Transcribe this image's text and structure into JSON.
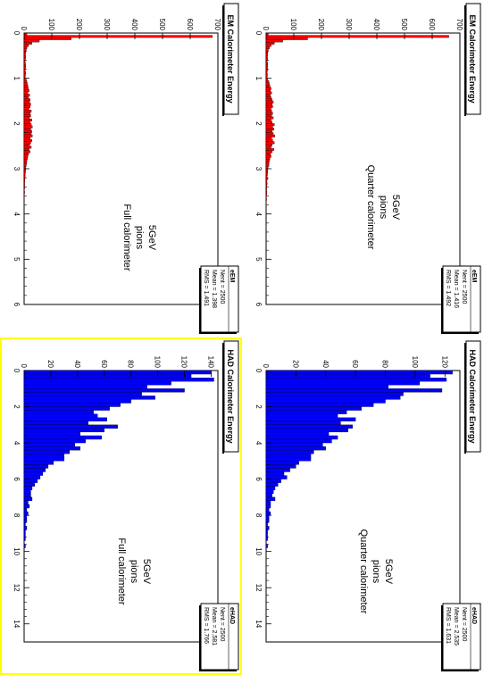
{
  "canvas": {
    "highlight_color": "#ffff00",
    "background": "#ffffff"
  },
  "chart_data": [
    {
      "type": "bar",
      "title": "EM Calorimeter Energy",
      "stats": {
        "name": "eEM",
        "entries": "Nent = 2500",
        "mean": "Mean = 1.416",
        "rms": "RMS = 1.492"
      },
      "annotation": [
        "5GeV",
        "pions",
        "Quarter calorimeter"
      ],
      "color": "#ff0000",
      "xlim": [
        0,
        6
      ],
      "ylim": [
        0,
        700
      ],
      "xticks": [
        0,
        1,
        2,
        3,
        4,
        5,
        6
      ],
      "yticks": [
        0,
        100,
        200,
        300,
        400,
        500,
        600,
        700
      ],
      "bin_width": 0.05,
      "values": [
        8,
        660,
        150,
        60,
        30,
        18,
        12,
        8,
        6,
        6,
        5,
        6,
        4,
        6,
        6,
        5,
        5,
        4,
        5,
        4,
        6,
        10,
        12,
        14,
        18,
        16,
        20,
        15,
        18,
        22,
        26,
        22,
        24,
        18,
        20,
        24,
        20,
        26,
        18,
        22,
        30,
        24,
        28,
        22,
        26,
        32,
        20,
        24,
        30,
        22,
        18,
        28,
        22,
        16,
        18,
        14,
        12,
        10,
        10,
        7,
        6,
        6,
        5,
        4,
        5,
        3,
        4,
        3,
        2,
        2,
        3,
        2,
        1,
        2,
        1,
        1,
        1,
        0,
        1,
        0
      ]
    },
    {
      "type": "bar",
      "title": "HAD Calorimeter Energy",
      "stats": {
        "name": "eHAD",
        "entries": "Nent = 2500",
        "mean": "Mean = 2.535",
        "rms": "RMS = 1.631"
      },
      "annotation": [
        "5GeV",
        "pions",
        "Quarter calorimeter"
      ],
      "color": "#0000ff",
      "xlim": [
        0,
        15
      ],
      "ylim": [
        0,
        130
      ],
      "xticks": [
        0,
        2,
        4,
        6,
        8,
        10,
        12,
        14
      ],
      "yticks": [
        0,
        20,
        40,
        60,
        80,
        100,
        120
      ],
      "bin_width": 0.2,
      "values": [
        125,
        110,
        121,
        103,
        82,
        118,
        92,
        90,
        80,
        72,
        64,
        54,
        48,
        60,
        50,
        58,
        55,
        42,
        48,
        44,
        38,
        40,
        32,
        30,
        30,
        22,
        20,
        16,
        12,
        14,
        10,
        8,
        6,
        5,
        4,
        6,
        3,
        3,
        2,
        3,
        2,
        2,
        1,
        2,
        1,
        1,
        1,
        0,
        1,
        0
      ]
    },
    {
      "type": "bar",
      "title": "EM Calorimeter Energy",
      "stats": {
        "name": "eEM",
        "entries": "Nent = 2500",
        "mean": "Mean = 1.398",
        "rms": "RMS = 1.491"
      },
      "annotation": [
        "5GeV",
        "pions",
        "Full calorimeter"
      ],
      "color": "#ff0000",
      "xlim": [
        0,
        6
      ],
      "ylim": [
        0,
        700
      ],
      "xticks": [
        0,
        1,
        2,
        3,
        4,
        5,
        6
      ],
      "yticks": [
        0,
        100,
        200,
        300,
        400,
        500,
        600,
        700
      ],
      "bin_width": 0.05,
      "values": [
        10,
        680,
        170,
        55,
        28,
        16,
        10,
        8,
        6,
        5,
        6,
        5,
        4,
        5,
        6,
        5,
        4,
        6,
        5,
        4,
        8,
        10,
        12,
        14,
        15,
        18,
        14,
        20,
        16,
        22,
        20,
        24,
        22,
        18,
        26,
        22,
        24,
        20,
        28,
        22,
        26,
        30,
        24,
        28,
        26,
        30,
        22,
        28,
        24,
        20,
        26,
        18,
        22,
        16,
        14,
        12,
        10,
        9,
        8,
        6,
        6,
        5,
        4,
        4,
        3,
        3,
        2,
        2,
        2,
        1,
        2,
        1,
        1,
        1,
        0,
        1,
        0,
        0,
        1,
        0
      ]
    },
    {
      "type": "bar",
      "title": "HAD Calorimeter Energy",
      "stats": {
        "name": "eHAD",
        "entries": "Nent = 2500",
        "mean": "Mean = 2.581",
        "rms": "RMS = 1.766"
      },
      "annotation": [
        "5GeV",
        "pions",
        "Full calorimeter"
      ],
      "color": "#0000ff",
      "xlim": [
        0,
        15
      ],
      "ylim": [
        0,
        145
      ],
      "xticks": [
        0,
        2,
        4,
        6,
        8,
        10,
        12,
        14
      ],
      "yticks": [
        0,
        20,
        40,
        60,
        80,
        100,
        120,
        140
      ],
      "bin_width": 0.2,
      "values": [
        140,
        125,
        142,
        110,
        92,
        120,
        88,
        98,
        80,
        72,
        64,
        52,
        55,
        62,
        48,
        70,
        60,
        42,
        58,
        46,
        38,
        42,
        34,
        30,
        30,
        22,
        18,
        16,
        14,
        12,
        10,
        8,
        6,
        5,
        5,
        6,
        3,
        4,
        2,
        3,
        2,
        2,
        1,
        2,
        1,
        1,
        1,
        0,
        1,
        0
      ]
    }
  ]
}
